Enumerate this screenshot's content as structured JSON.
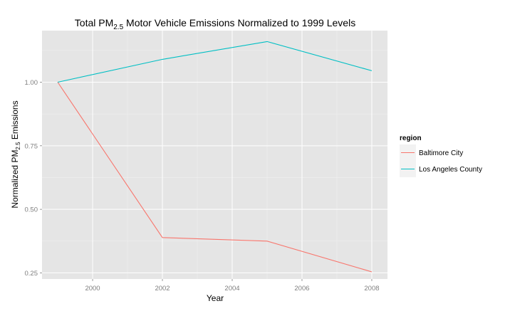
{
  "chart_data": {
    "type": "line",
    "title": "Total PM",
    "title_sub": "2.5",
    "title_rest": " Motor Vehicle Emissions Normalized to 1999 Levels",
    "xlabel": "Year",
    "ylabel_prefix": "Normalized PM",
    "ylabel_sub": "2.5",
    "ylabel_suffix": " Emissions",
    "x": [
      1999,
      2002,
      2005,
      2008
    ],
    "xlim": [
      1998.55,
      2008.45
    ],
    "ylim": [
      0.226,
      1.203
    ],
    "x_ticks": [
      2000,
      2002,
      2004,
      2006,
      2008
    ],
    "y_ticks": [
      0.25,
      0.5,
      0.75,
      1.0
    ],
    "y_tick_labels": [
      "0.25",
      "0.50",
      "0.75",
      "1.00"
    ],
    "grid": true,
    "legend_position": "right",
    "legend_title": "region",
    "series": [
      {
        "name": "Baltimore City",
        "color": "#F8766D",
        "values": [
          1.0,
          0.389,
          0.375,
          0.254
        ]
      },
      {
        "name": "Los Angeles County",
        "color": "#00BFC4",
        "values": [
          1.0,
          1.09,
          1.16,
          1.045
        ]
      }
    ]
  }
}
